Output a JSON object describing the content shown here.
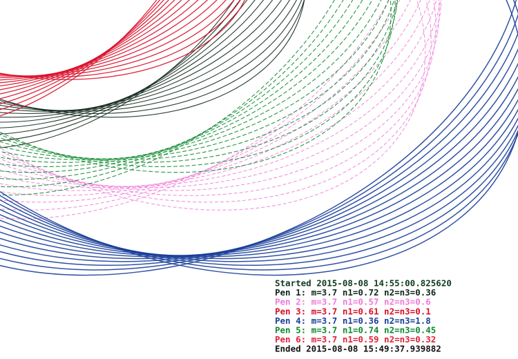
{
  "log": {
    "started": {
      "text": "Started 2015-08-08 14:55:00.825620",
      "color": "#0f3a1e"
    },
    "pens": [
      {
        "text": "Pen 1: m=3.7 n1=0.72 n2=n3=0.36",
        "color": "#10261a"
      },
      {
        "text": "Pen 2: m=3.7 n1=0.57 n2=n3=0.6",
        "color": "#f07ad8"
      },
      {
        "text": "Pen 3: m=3.7 n1=0.61 n2=n3=0.1",
        "color": "#d8102a"
      },
      {
        "text": "Pen 4: m=3.7 n1=0.36 n2=n3=1.8",
        "color": "#1a3f9a"
      },
      {
        "text": "Pen 5: m=3.7 n1=0.74 n2=n3=0.45",
        "color": "#0f8a30"
      },
      {
        "text": "Pen 6: m=3.7 n1=0.59 n2=n3=0.32",
        "color": "#e0243a"
      }
    ],
    "ended": {
      "text": "Ended 2015-08-08 15:49:37.939882",
      "color": "#101010"
    }
  }
}
